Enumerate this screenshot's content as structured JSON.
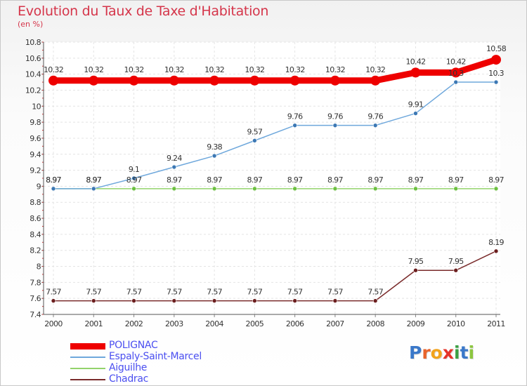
{
  "title": "Evolution du Taux de Taxe d'Habitation",
  "unit": "(en %)",
  "logo": {
    "text": "Proxiti",
    "letters": [
      {
        "ch": "P",
        "color": "#3a78c9"
      },
      {
        "ch": "r",
        "color": "#e8632b"
      },
      {
        "ch": "o",
        "color": "#f2a31c"
      },
      {
        "ch": "x",
        "color": "#e5332a"
      },
      {
        "ch": "i",
        "color": "#3aa043"
      },
      {
        "ch": "t",
        "color": "#3a78c9"
      },
      {
        "ch": "i",
        "color": "#8cc63f"
      }
    ]
  },
  "chart_data": {
    "type": "line",
    "x": [
      "2000",
      "2001",
      "2002",
      "2003",
      "2004",
      "2005",
      "2006",
      "2007",
      "2008",
      "2009",
      "2010",
      "2011"
    ],
    "ylim": [
      7.4,
      10.8
    ],
    "yticks": [
      7.4,
      7.6,
      7.8,
      8,
      8.2,
      8.4,
      8.6,
      8.8,
      9,
      9.2,
      9.4,
      9.6,
      9.8,
      10,
      10.2,
      10.4,
      10.6,
      10.8
    ],
    "ytick_labels": [
      "7.4",
      "7.6",
      "7.8",
      "8",
      "8.2",
      "8.4",
      "8.6",
      "8.8",
      "9",
      "9.2",
      "9.4",
      "9.6",
      "9.8",
      "10",
      "10.2",
      "10.4",
      "10.6",
      "10.8"
    ],
    "grid": true,
    "legend_position": "bottom-left",
    "series": [
      {
        "name": "POLIGNAC",
        "color": "#ee0000",
        "values": [
          10.32,
          10.32,
          10.32,
          10.32,
          10.32,
          10.32,
          10.32,
          10.32,
          10.32,
          10.42,
          10.42,
          10.58
        ],
        "labels": [
          "10.32",
          "10.32",
          "10.32",
          "10.32",
          "10.32",
          "10.32",
          "10.32",
          "10.32",
          "10.32",
          "10.42",
          "10.42",
          "10.58"
        ]
      },
      {
        "name": "Espaly-Saint-Marcel",
        "color": "#6fa8dc",
        "marker": "#3c78b4",
        "values": [
          8.97,
          8.97,
          9.1,
          9.24,
          9.38,
          9.57,
          9.76,
          9.76,
          9.76,
          9.91,
          10.3,
          10.3
        ],
        "labels": [
          "8.97",
          "8.97",
          "9.1",
          "9.24",
          "9.38",
          "9.57",
          "9.76",
          "9.76",
          "9.76",
          "9.91",
          "10.3",
          "10.3"
        ]
      },
      {
        "name": "Aiguilhe",
        "color": "#93d36b",
        "marker": "#6cc040",
        "values": [
          8.97,
          8.97,
          8.97,
          8.97,
          8.97,
          8.97,
          8.97,
          8.97,
          8.97,
          8.97,
          8.97,
          8.97
        ],
        "labels": [
          "8.97",
          "8.97",
          "8.97",
          "8.97",
          "8.97",
          "8.97",
          "8.97",
          "8.97",
          "8.97",
          "8.97",
          "8.97",
          "8.97"
        ]
      },
      {
        "name": "Chadrac",
        "color": "#7a2b2b",
        "marker": "#6b1e1e",
        "values": [
          7.57,
          7.57,
          7.57,
          7.57,
          7.57,
          7.57,
          7.57,
          7.57,
          7.57,
          7.95,
          7.95,
          8.19
        ],
        "labels": [
          "7.57",
          "7.57",
          "7.57",
          "7.57",
          "7.57",
          "7.57",
          "7.57",
          "7.57",
          "7.57",
          "7.95",
          "7.95",
          "8.19"
        ]
      }
    ]
  }
}
